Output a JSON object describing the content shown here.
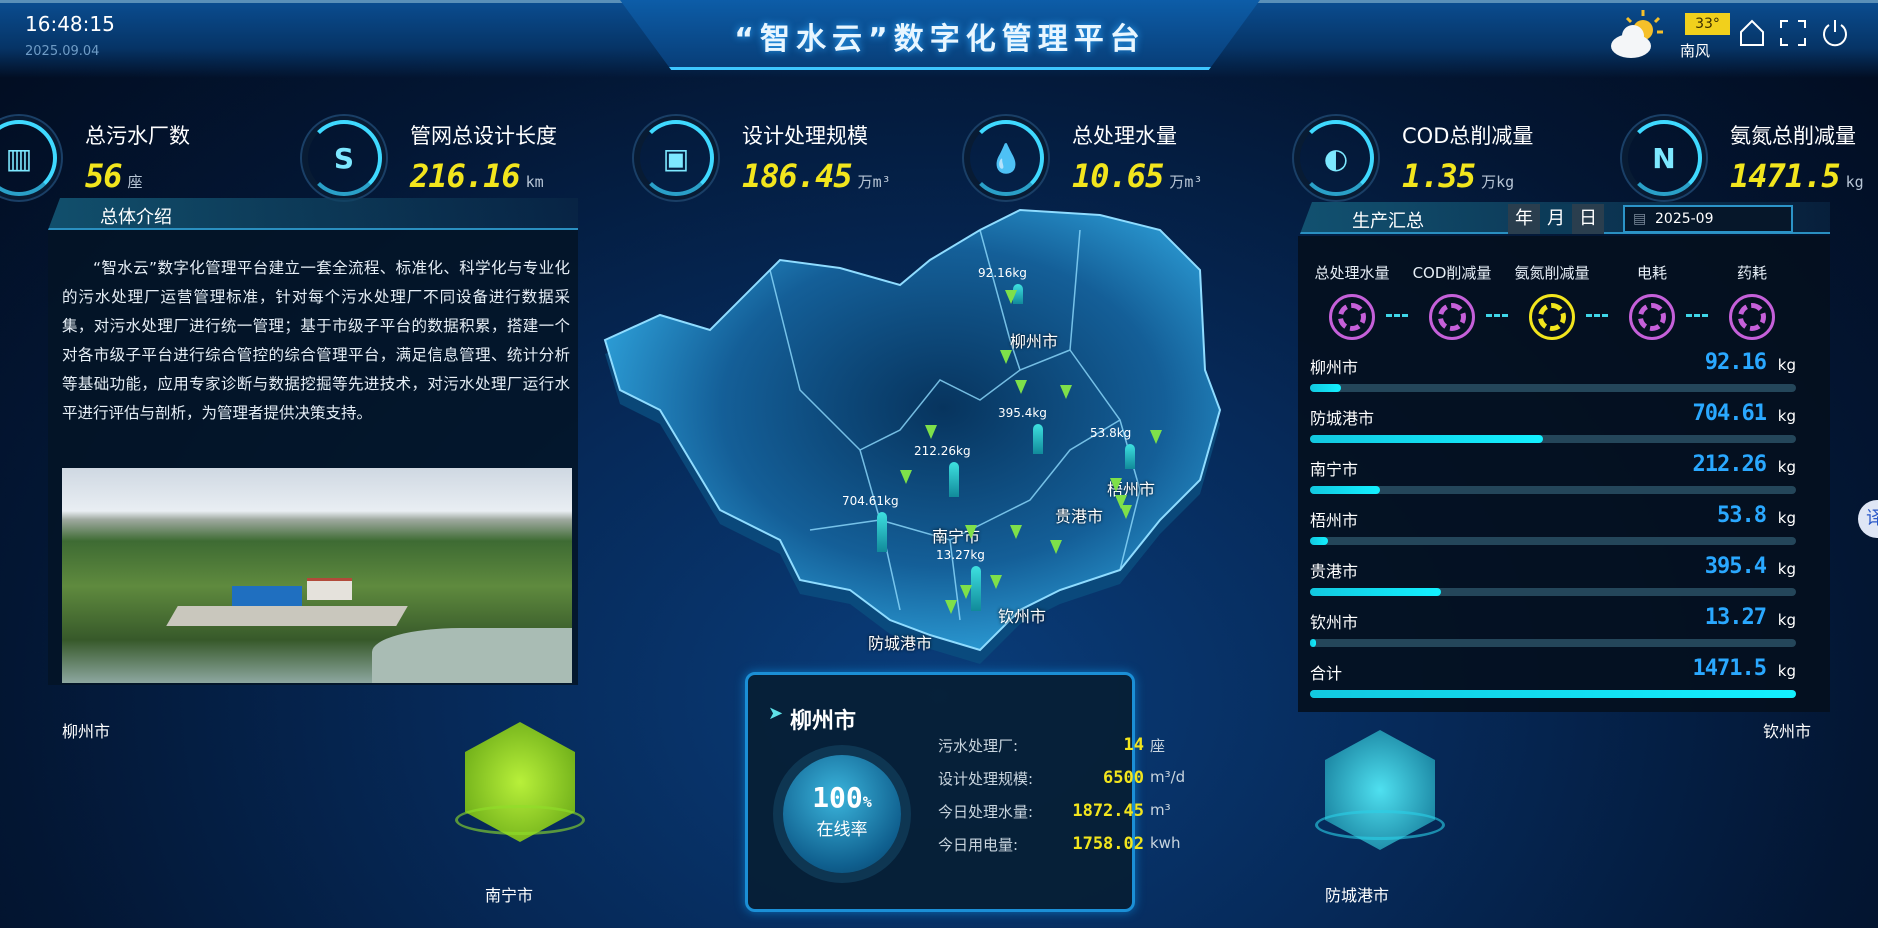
{
  "header": {
    "title": "“智水云”数字化管理平台",
    "time": "16:48:15",
    "date": "2025.09.04",
    "weather": {
      "icon": "partly-cloudy-icon",
      "temperature": "33°",
      "wind": "南风"
    },
    "icons": [
      "home-icon",
      "fullscreen-icon",
      "power-icon"
    ]
  },
  "kpis": [
    {
      "label": "总污水厂数",
      "value": "56",
      "unit": "座",
      "icon": "factory-icon"
    },
    {
      "label": "管网总设计长度",
      "value": "216.16",
      "unit": "km",
      "icon": "pipe-icon"
    },
    {
      "label": "设计处理规模",
      "value": "186.45",
      "unit": "万m³",
      "icon": "chip-icon"
    },
    {
      "label": "总处理水量",
      "value": "10.65",
      "unit": "万m³",
      "icon": "water-level-icon"
    },
    {
      "label": "COD总削减量",
      "value": "1.35",
      "unit": "万kg",
      "icon": "water-drop-icon"
    },
    {
      "label": "氨氮总削减量",
      "value": "1471.5",
      "unit": "kg",
      "icon": "nitrogen-icon"
    }
  ],
  "intro": {
    "title": "总体介绍",
    "text": "“智水云”数字化管理平台建立一套全流程、标准化、科学化与专业化的污水处理厂运营管理标准，针对每个污水处理厂不同设备进行数据采集，对污水处理厂进行统一管理；基于市级子平台的数据积累，搭建一个对各市级子平台进行综合管控的综合管理平台，满足信息管理、统计分析等基础功能，应用专家诊断与数据挖掘等先进技术，对污水处理厂运行水平进行评估与剖析，为管理者提供决策支持。"
  },
  "production": {
    "title": "生产汇总",
    "periods": [
      "年",
      "月",
      "日"
    ],
    "selected_period": "月",
    "date": "2025-09",
    "categories": [
      "总处理水量",
      "COD削减量",
      "氨氮削减量",
      "电耗",
      "药耗"
    ],
    "selected_category": "氨氮削减量",
    "rows": [
      {
        "name": "柳州市",
        "value": "92.16",
        "unit": "kg",
        "fraction": 0.063
      },
      {
        "name": "防城港市",
        "value": "704.61",
        "unit": "kg",
        "fraction": 0.479
      },
      {
        "name": "南宁市",
        "value": "212.26",
        "unit": "kg",
        "fraction": 0.144
      },
      {
        "name": "梧州市",
        "value": "53.8",
        "unit": "kg",
        "fraction": 0.037
      },
      {
        "name": "贵港市",
        "value": "395.4",
        "unit": "kg",
        "fraction": 0.269
      },
      {
        "name": "钦州市",
        "value": "13.27",
        "unit": "kg",
        "fraction": 0.009
      },
      {
        "name": "合计",
        "value": "1471.5",
        "unit": "kg",
        "fraction": 1.0
      }
    ]
  },
  "map": {
    "cities": [
      {
        "name": "柳州市",
        "value": "92.16kg"
      },
      {
        "name": "梧州市",
        "value": "53.8kg"
      },
      {
        "name": "贵港市",
        "value": "395.4kg"
      },
      {
        "name": "南宁市",
        "value": "212.26kg"
      },
      {
        "name": "防城港市",
        "value": "704.61kg"
      },
      {
        "name": "钦州市",
        "value": "13.27kg"
      }
    ]
  },
  "city_info": {
    "city": "柳州市",
    "online_rate": "100",
    "online_unit": "%",
    "online_label": "在线率",
    "items": [
      {
        "label": "污水处理厂:",
        "value": "14",
        "unit": "座"
      },
      {
        "label": "设计处理规模:",
        "value": "6500",
        "unit": "m³/d"
      },
      {
        "label": "今日处理水量:",
        "value": "1872.45",
        "unit": "m³"
      },
      {
        "label": "今日用电量:",
        "value": "1758.02",
        "unit": "kwh"
      }
    ]
  },
  "carousel": {
    "left_top": "柳州市",
    "left_bottom": "南宁市",
    "right_top": "钦州市",
    "right_bottom": "防城港市"
  },
  "translate": "译",
  "colors": {
    "accent": "#3fd9ff",
    "value_yellow": "#f2e51d",
    "bar": "#13f0ff",
    "ring_purple": "#c560d9",
    "list_value": "#2aa8ff"
  }
}
